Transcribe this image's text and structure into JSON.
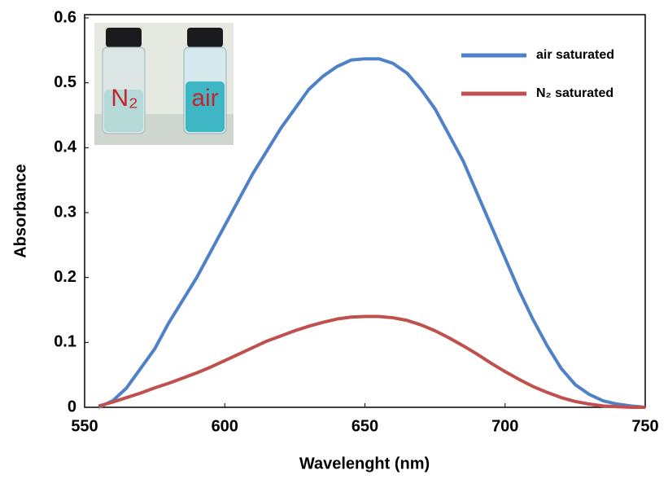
{
  "chart_data": {
    "type": "line",
    "x_label": "Wavelenght (nm)",
    "y_label": "Absorbance",
    "x": [
      555,
      560,
      565,
      570,
      575,
      580,
      585,
      590,
      595,
      600,
      605,
      610,
      615,
      620,
      625,
      630,
      635,
      640,
      645,
      650,
      655,
      660,
      665,
      670,
      675,
      680,
      685,
      690,
      695,
      700,
      705,
      710,
      715,
      720,
      725,
      730,
      735,
      740,
      745,
      750
    ],
    "series": [
      {
        "name": "air saturated",
        "color": "#4f81c9",
        "values": [
          0,
          0.01,
          0.03,
          0.06,
          0.09,
          0.13,
          0.165,
          0.2,
          0.24,
          0.28,
          0.32,
          0.36,
          0.395,
          0.43,
          0.46,
          0.49,
          0.51,
          0.525,
          0.535,
          0.537,
          0.537,
          0.53,
          0.515,
          0.49,
          0.46,
          0.42,
          0.38,
          0.33,
          0.28,
          0.23,
          0.18,
          0.135,
          0.095,
          0.06,
          0.035,
          0.02,
          0.01,
          0.005,
          0.002,
          0
        ]
      },
      {
        "name": "N₂ saturated",
        "color": "#c0504d",
        "values": [
          0.002,
          0.008,
          0.015,
          0.022,
          0.03,
          0.037,
          0.045,
          0.053,
          0.062,
          0.072,
          0.082,
          0.092,
          0.102,
          0.11,
          0.118,
          0.125,
          0.131,
          0.136,
          0.139,
          0.14,
          0.14,
          0.138,
          0.134,
          0.127,
          0.118,
          0.107,
          0.095,
          0.082,
          0.068,
          0.055,
          0.043,
          0.032,
          0.023,
          0.015,
          0.009,
          0.005,
          0.002,
          0.001,
          0,
          0
        ]
      }
    ],
    "xlim": [
      550,
      750
    ],
    "xticks": [
      550,
      600,
      650,
      700,
      750
    ],
    "ylim": [
      0,
      0.6
    ],
    "yticks": [
      0,
      0.1,
      0.2,
      0.3,
      0.4,
      0.5,
      0.6
    ],
    "legend": "upper right",
    "inset_labels": [
      "N₂",
      "air"
    ]
  }
}
